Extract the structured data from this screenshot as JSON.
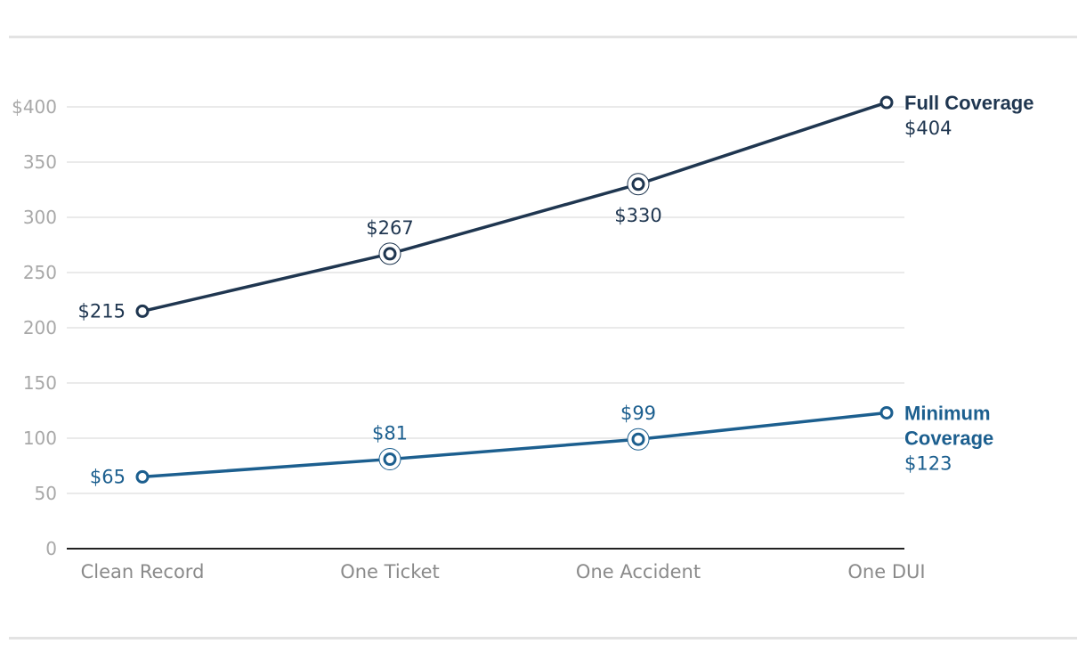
{
  "chart_data": {
    "type": "line",
    "categories": [
      "Clean Record",
      "One Ticket",
      "One Accident",
      "One DUI"
    ],
    "ylim": [
      0,
      400
    ],
    "yticks": [
      0,
      50,
      100,
      150,
      200,
      250,
      300,
      350,
      400
    ],
    "ytick_labels": [
      "0",
      "50",
      "100",
      "150",
      "200",
      "250",
      "300",
      "350",
      "$400"
    ],
    "grid": true,
    "series": [
      {
        "name": "Full Coverage",
        "name_lines": [
          "Full Coverage"
        ],
        "values": [
          215,
          267,
          330,
          404
        ],
        "labels": [
          "$215",
          "$267",
          "$330",
          "$404"
        ],
        "color": "#1f3650"
      },
      {
        "name": "Minimum Coverage",
        "name_lines": [
          "Minimum",
          "Coverage"
        ],
        "values": [
          65,
          81,
          99,
          123
        ],
        "labels": [
          "$65",
          "$81",
          "$99",
          "$123"
        ],
        "color": "#1c5f8f"
      }
    ]
  }
}
